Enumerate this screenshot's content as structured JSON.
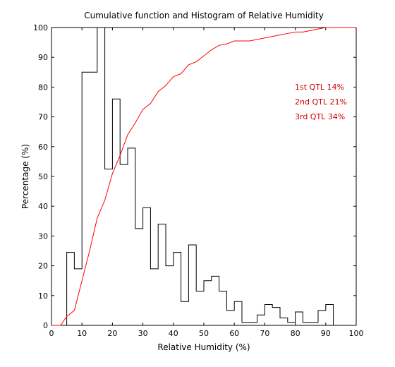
{
  "chart_data": {
    "type": "bar",
    "title": "Cumulative function and Histogram of Relative Humidity",
    "xlabel": "Relative Humidity (%)",
    "ylabel": "Percentage (%)",
    "xlim": [
      0,
      100
    ],
    "ylim": [
      0,
      100
    ],
    "xticks": [
      "0",
      "10",
      "20",
      "30",
      "40",
      "50",
      "60",
      "70",
      "80",
      "90",
      "100"
    ],
    "yticks": [
      "0",
      "10",
      "20",
      "30",
      "40",
      "50",
      "60",
      "70",
      "80",
      "90",
      "100"
    ],
    "grid": false,
    "legend": "none",
    "series": [
      {
        "type": "histogram-step",
        "color": "#000000",
        "bin_edges": [
          5,
          7.5,
          10,
          12.5,
          15,
          17.5,
          20,
          22.5,
          25,
          27.5,
          30,
          32.5,
          35,
          37.5,
          40,
          42.5,
          45,
          47.5,
          50,
          52.5,
          55,
          57.5,
          60,
          62.5,
          65,
          67.5,
          70,
          72.5,
          75,
          77.5,
          80,
          82.5,
          85,
          87.5,
          90,
          92.5
        ],
        "values": [
          24.5,
          19,
          85,
          85,
          100,
          52.5,
          76,
          54,
          59.5,
          32.5,
          39.5,
          19,
          34,
          20,
          24.5,
          8,
          27,
          11.5,
          15,
          16.5,
          11.5,
          5,
          8,
          1,
          1,
          3.5,
          7,
          6,
          2.5,
          1,
          4.5,
          1,
          1,
          5,
          7
        ]
      },
      {
        "type": "line",
        "color": "#ff0000",
        "x": [
          3,
          5,
          7.5,
          10,
          12.5,
          15,
          17.5,
          20,
          22.5,
          25,
          27.5,
          30,
          32.5,
          35,
          37.5,
          40,
          42.5,
          45,
          47.5,
          50,
          52.5,
          55,
          57.5,
          60,
          62.5,
          65,
          67.5,
          70,
          72.5,
          75,
          77.5,
          80,
          82.5,
          85,
          87.5,
          90,
          92.5,
          100
        ],
        "values": [
          0,
          3,
          5,
          15,
          25,
          36,
          42,
          51,
          57,
          64,
          68,
          72.5,
          74.5,
          78.5,
          80.5,
          83.5,
          84.5,
          87.5,
          88.5,
          90.5,
          92.5,
          94,
          94.5,
          95.5,
          95.5,
          95.5,
          96,
          96.5,
          97,
          97.5,
          98,
          98.5,
          98.5,
          99,
          99.5,
          100,
          100,
          100
        ]
      }
    ],
    "annotations": [
      "1st QTL  14%",
      "2nd QTL  21%",
      "3rd QTL  34%"
    ],
    "annotation_color": "#cc0000"
  }
}
